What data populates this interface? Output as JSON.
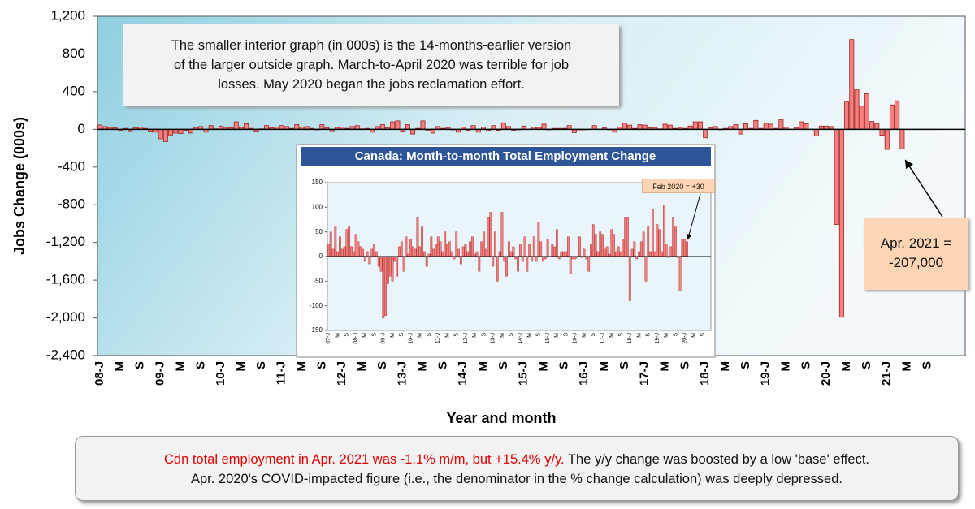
{
  "chart_data": [
    {
      "type": "bar",
      "y_label": "Jobs Change (000s)",
      "x_label": "Year and month",
      "color": "#f4817f",
      "ylim": [
        -2400,
        1200
      ],
      "yticks": [
        {
          "value": -2400,
          "label": "-2,400"
        },
        {
          "value": -2000,
          "label": "-2,000"
        },
        {
          "value": -1600,
          "label": "-1,600"
        },
        {
          "value": -1200,
          "label": "-1,200"
        },
        -800,
        -400,
        0,
        400,
        800,
        {
          "value": 1200,
          "label": "1,200"
        }
      ],
      "grid": false,
      "note_lines": [
        "The smaller interior graph (in 000s) is the 14-months-earlier version",
        "of the larger outside graph. March-to-April 2020 was terrible for job",
        "losses. May 2020 began the jobs reclamation effort."
      ],
      "callout_lines": [
        "Apr. 2021 =",
        "-207,000"
      ],
      "caption": [
        "Cdn total employment in Apr. 2021 was -1.1% m/m, but +15.4% y/y.",
        "The y/y change was boosted by a low 'base' effect.",
        "Apr. 2020's COVID-impacted figure (i.e., the denominator in the % change calculation) was deeply depressed."
      ],
      "categories": [
        "08-J",
        null,
        null,
        null,
        "M",
        null,
        null,
        null,
        "S",
        null,
        null,
        null,
        "09-J",
        null,
        null,
        null,
        "M",
        null,
        null,
        null,
        "S",
        null,
        null,
        null,
        "10-J",
        null,
        null,
        null,
        "M",
        null,
        null,
        null,
        "S",
        null,
        null,
        null,
        "11-J",
        null,
        null,
        null,
        "M",
        null,
        null,
        null,
        "S",
        null,
        null,
        null,
        "12-J",
        null,
        null,
        null,
        "M",
        null,
        null,
        null,
        "S",
        null,
        null,
        null,
        "13-J",
        null,
        null,
        null,
        "M",
        null,
        null,
        null,
        "S",
        null,
        null,
        null,
        "14-J",
        null,
        null,
        null,
        "M",
        null,
        null,
        null,
        "S",
        null,
        null,
        null,
        "15-J",
        null,
        null,
        null,
        "M",
        null,
        null,
        null,
        "S",
        null,
        null,
        null,
        "16-J",
        null,
        null,
        null,
        "M",
        null,
        null,
        null,
        "S",
        null,
        null,
        null,
        "17-J",
        null,
        null,
        null,
        "M",
        null,
        null,
        null,
        "S",
        null,
        null,
        null,
        "18-J",
        null,
        null,
        null,
        "M",
        null,
        null,
        null,
        "S",
        null,
        null,
        null,
        "19-J",
        null,
        null,
        null,
        "M",
        null,
        null,
        null,
        "S",
        null,
        null,
        null,
        "20-J",
        null,
        null,
        null,
        "M",
        null,
        null,
        null,
        "S",
        null,
        null,
        null,
        "21-J",
        null,
        null,
        null,
        "M",
        null,
        null,
        null,
        "S",
        null,
        null,
        null,
        null,
        null,
        null,
        null
      ],
      "values": [
        45,
        30,
        20,
        15,
        -10,
        10,
        -15,
        15,
        25,
        10,
        -20,
        -30,
        -100,
        -130,
        -60,
        -40,
        -45,
        -10,
        -40,
        20,
        30,
        -30,
        40,
        5,
        35,
        20,
        15,
        80,
        20,
        60,
        10,
        -20,
        5,
        40,
        15,
        25,
        40,
        30,
        10,
        50,
        25,
        30,
        10,
        -5,
        50,
        15,
        -15,
        20,
        25,
        10,
        30,
        40,
        5,
        10,
        -30,
        30,
        50,
        15,
        80,
        90,
        -20,
        50,
        -50,
        10,
        90,
        -10,
        -40,
        30,
        10,
        20,
        -5,
        -30,
        25,
        -10,
        40,
        -30,
        25,
        -10,
        40,
        -10,
        70,
        30,
        -10,
        -5,
        35,
        -1,
        25,
        20,
        55,
        -5,
        10,
        10,
        10,
        40,
        -35,
        -5,
        -5,
        -2,
        40,
        -2,
        15,
        -5,
        -30,
        25,
        65,
        45,
        10,
        50,
        45,
        15,
        20,
        5,
        55,
        45,
        10,
        20,
        10,
        35,
        80,
        80,
        -90,
        15,
        30,
        -5,
        10,
        30,
        50,
        -50,
        60,
        10,
        95,
        10,
        65,
        55,
        10,
        105,
        25,
        -2,
        20,
        80,
        60,
        -2,
        -70,
        35,
        35,
        30,
        -1010,
        -1993,
        290,
        953,
        419,
        246,
        378,
        84,
        62,
        -63,
        -213,
        259,
        303,
        -207,
        null,
        null,
        null,
        null,
        null,
        null,
        null,
        null,
        null,
        null,
        null,
        null
      ]
    },
    {
      "type": "bar",
      "title": "Canada: Month-to-month Total Employment Change",
      "color": "#f4817f",
      "ylim": [
        -150,
        150
      ],
      "yticks": [
        -150,
        -100,
        -50,
        0,
        50,
        100,
        150
      ],
      "grid": false,
      "callout": "Feb 2020 =  +30",
      "categories": [
        "07-J",
        null,
        null,
        null,
        "M",
        null,
        null,
        null,
        "S",
        null,
        null,
        null,
        "08-J",
        null,
        null,
        null,
        "M",
        null,
        null,
        null,
        "S",
        null,
        null,
        null,
        "09-J",
        null,
        null,
        null,
        "M",
        null,
        null,
        null,
        "S",
        null,
        null,
        null,
        "10-J",
        null,
        null,
        null,
        "M",
        null,
        null,
        null,
        "S",
        null,
        null,
        null,
        "11-J",
        null,
        null,
        null,
        "M",
        null,
        null,
        null,
        "S",
        null,
        null,
        null,
        "12-J",
        null,
        null,
        null,
        "M",
        null,
        null,
        null,
        "S",
        null,
        null,
        null,
        "13-J",
        null,
        null,
        null,
        "M",
        null,
        null,
        null,
        "S",
        null,
        null,
        null,
        "14-J",
        null,
        null,
        null,
        "M",
        null,
        null,
        null,
        "S",
        null,
        null,
        null,
        "15-J",
        null,
        null,
        null,
        "M",
        null,
        null,
        null,
        "S",
        null,
        null,
        null,
        "16-J",
        null,
        null,
        null,
        "M",
        null,
        null,
        null,
        "S",
        null,
        null,
        null,
        "17-J",
        null,
        null,
        null,
        "M",
        null,
        null,
        null,
        "S",
        null,
        null,
        null,
        "18-J",
        null,
        null,
        null,
        "M",
        null,
        null,
        null,
        "S",
        null,
        null,
        null,
        "19-J",
        null,
        null,
        null,
        "M",
        null,
        null,
        null,
        "S",
        null,
        null,
        null,
        "20-J",
        null,
        null,
        null,
        "M",
        null,
        null,
        null,
        "S",
        null,
        null,
        null
      ],
      "values": [
        25,
        50,
        15,
        60,
        10,
        40,
        15,
        20,
        55,
        60,
        20,
        10,
        45,
        30,
        20,
        15,
        -10,
        10,
        -15,
        15,
        25,
        10,
        -20,
        -30,
        -125,
        -120,
        -55,
        -40,
        -50,
        -10,
        -40,
        20,
        30,
        -30,
        40,
        5,
        35,
        20,
        15,
        80,
        20,
        60,
        10,
        -20,
        5,
        40,
        15,
        25,
        40,
        30,
        10,
        50,
        25,
        30,
        10,
        -5,
        50,
        15,
        -15,
        20,
        25,
        10,
        30,
        40,
        5,
        10,
        -30,
        30,
        50,
        15,
        80,
        90,
        -20,
        50,
        -50,
        10,
        90,
        -10,
        -40,
        30,
        10,
        20,
        -5,
        -30,
        25,
        -10,
        40,
        -30,
        25,
        -10,
        40,
        -10,
        70,
        30,
        -10,
        -5,
        35,
        -1,
        25,
        20,
        55,
        -5,
        10,
        10,
        10,
        40,
        -35,
        -5,
        -5,
        -2,
        40,
        -2,
        15,
        -5,
        -30,
        25,
        65,
        45,
        10,
        50,
        45,
        15,
        20,
        5,
        55,
        45,
        10,
        20,
        10,
        35,
        80,
        80,
        -90,
        15,
        30,
        -5,
        10,
        30,
        50,
        -50,
        60,
        10,
        95,
        10,
        65,
        55,
        10,
        105,
        25,
        -2,
        20,
        80,
        60,
        -2,
        -70,
        35,
        35,
        30,
        null,
        null,
        null,
        null,
        null,
        null,
        null,
        null,
        null,
        null
      ]
    }
  ]
}
